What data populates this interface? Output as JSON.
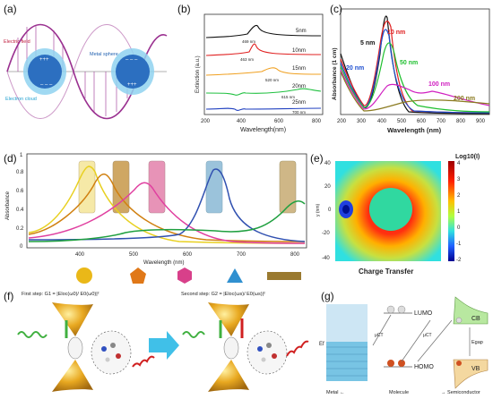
{
  "panels": {
    "a": {
      "label": "(a)",
      "annotations": [
        "Electric field",
        "Metal sphere",
        "Electron cloud"
      ]
    },
    "b": {
      "label": "(b)",
      "ylabel": "Extinction (a.u.)",
      "xlabel": "Wavelength(nm)",
      "xticks": [
        "200",
        "400",
        "600",
        "800"
      ],
      "traces": [
        {
          "name": "5nm",
          "peak": "469 nm",
          "color": "#111111"
        },
        {
          "name": "10nm",
          "peak": "463 nm",
          "color": "#e02020"
        },
        {
          "name": "15nm",
          "peak": "520 nm",
          "color": "#f0a020"
        },
        {
          "name": "20nm",
          "peak": "615 nm",
          "color": "#20c040"
        },
        {
          "name": "25nm",
          "peak": "700 nm",
          "color": "#2040c0"
        }
      ]
    },
    "c": {
      "label": "(c)",
      "ylabel": "Absorbance (1 cm)",
      "xlabel": "Wavelength (nm)",
      "xticks": [
        "200",
        "300",
        "400",
        "500",
        "600",
        "700",
        "800",
        "900"
      ],
      "series_labels": [
        {
          "text": "5 nm",
          "color": "#111111"
        },
        {
          "text": "10 nm",
          "color": "#e02020"
        },
        {
          "text": "20 nm",
          "color": "#2050d0"
        },
        {
          "text": "50 nm",
          "color": "#20c030"
        },
        {
          "text": "100 nm",
          "color": "#d020c0"
        },
        {
          "text": "200 nm",
          "color": "#8a7a20"
        }
      ]
    },
    "d": {
      "label": "(d)",
      "ylabel": "Absorbance",
      "xlabel": "Wavelength (nm)",
      "xticks": [
        "400",
        "500",
        "600",
        "700",
        "800"
      ],
      "yticks": [
        "0",
        "0.2",
        "0.4",
        "0.6",
        "0.8",
        "1"
      ],
      "shapes": [
        "circle",
        "pentagon",
        "hexagon",
        "triangle",
        "rod"
      ]
    },
    "e": {
      "label": "(e)",
      "colorbar_title": "Log10(I)",
      "colorbar_ticks": [
        "4",
        "3",
        "2",
        "1",
        "0",
        "-1",
        "-2"
      ],
      "yticks": [
        "40",
        "20",
        "0",
        "-20",
        "-40"
      ],
      "ylabel": "y (nm)",
      "caption": "Charge Transfer"
    },
    "f": {
      "label": "(f)",
      "first_step": "First step: G1 = |Eloc(ω0)/ E0(ω0)|²",
      "second_step": "Second step: G2 = |Eloc(ωs)/ E0(ωs)|²"
    },
    "g": {
      "label": "(g)",
      "lumo": "LUMO",
      "homo": "HOMO",
      "cb": "CB",
      "vb": "VB",
      "gap": "Egap",
      "ef": "Ef",
      "mu": "μCT",
      "bottom_labels": [
        "Metal ←",
        "Molecule",
        "→ Semiconductor"
      ]
    }
  }
}
